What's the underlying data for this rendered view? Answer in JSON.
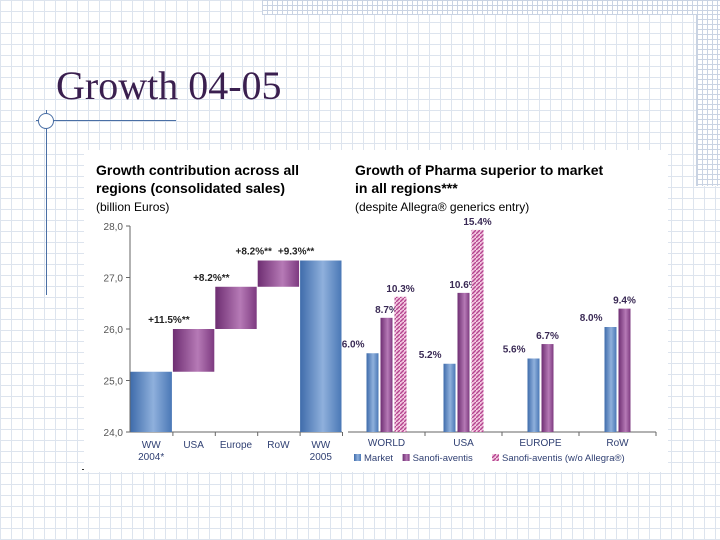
{
  "slide": {
    "title": "Growth 04-05"
  },
  "chart_data": [
    {
      "type": "bar",
      "title_lines": [
        "Growth contribution across all",
        "regions (consolidated sales)"
      ],
      "unit": "(billion Euros)",
      "categories": [
        "WW 2004*",
        "USA",
        "Europe",
        "RoW",
        "WW 2005"
      ],
      "category_lines": [
        [
          "WW",
          "2004*"
        ],
        [
          "USA"
        ],
        [
          "Europe"
        ],
        [
          "RoW"
        ],
        [
          "WW",
          "2005"
        ]
      ],
      "ylim": [
        24.0,
        28.0
      ],
      "yticks": [
        "24,0",
        "25,0",
        "26,0",
        "27,0",
        "28,0"
      ],
      "ytick_values": [
        24,
        25,
        26,
        27,
        28
      ],
      "bars": [
        {
          "start": 24.0,
          "end": 25.17,
          "kind": "total"
        },
        {
          "start": 25.17,
          "end": 26.0,
          "kind": "step"
        },
        {
          "start": 26.0,
          "end": 26.82,
          "kind": "step"
        },
        {
          "start": 26.82,
          "end": 27.33,
          "kind": "step"
        },
        {
          "start": 24.0,
          "end": 27.33,
          "kind": "total"
        }
      ],
      "annotations": [
        "",
        "+11.5%**",
        "+8.2%**",
        "+8.2%**",
        "+9.3%**"
      ]
    },
    {
      "type": "bar",
      "title_lines": [
        "Growth of Pharma superior to market",
        "in all regions***"
      ],
      "subtitle": "(despite Allegra® generics entry)",
      "categories": [
        "WORLD",
        "USA",
        "EUROPE",
        "RoW"
      ],
      "series": [
        {
          "name": "Market",
          "values": [
            6.0,
            5.2,
            5.6,
            8.0
          ]
        },
        {
          "name": "Sanofi-aventis",
          "values": [
            8.7,
            10.6,
            6.7,
            9.4
          ]
        },
        {
          "name": "Sanofi-aventis (w/o Allegra®)",
          "values": [
            10.3,
            15.4,
            null,
            null
          ]
        }
      ],
      "value_labels": [
        [
          "6.0%",
          "5.2%",
          "5.6%",
          "8.0%"
        ],
        [
          "8.7%",
          "10.6%",
          "6.7%",
          "9.4%"
        ],
        [
          "10.3%",
          "15.4%",
          "",
          ""
        ]
      ],
      "ylim": [
        0,
        16
      ]
    }
  ],
  "colors": {
    "total_bar": "#5b86c0",
    "step_bar": "#8a3f8c",
    "market": "#5b86c0",
    "sanofi": "#7a3a82",
    "sanofi_hatched": "#b04a98",
    "heading": "#2f3f72",
    "axis": "#666666"
  }
}
